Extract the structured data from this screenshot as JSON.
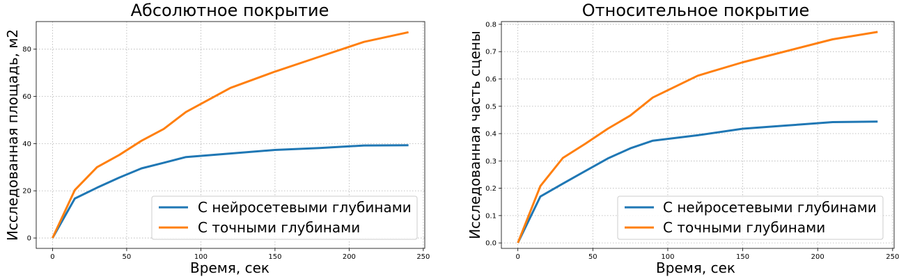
{
  "chart_data": [
    {
      "type": "line",
      "title": "Абсолютное покрытие",
      "xlabel": "Время, сек",
      "ylabel": "Исследованная площадь, м2",
      "xlim": [
        -11,
        251
      ],
      "ylim": [
        -4.4,
        91.7
      ],
      "xticks": [
        0,
        50,
        100,
        150,
        200,
        250
      ],
      "yticks": [
        0,
        20,
        40,
        60,
        80
      ],
      "grid": true,
      "legend_position": "bottom-right",
      "series": [
        {
          "name": "С нейросетевыми глубинами",
          "color": "#1f77b4",
          "x": [
            0,
            15,
            30,
            45,
            60,
            75,
            90,
            120,
            150,
            180,
            210,
            240
          ],
          "y": [
            0,
            16.7,
            21.3,
            25.6,
            29.5,
            31.9,
            34.3,
            35.8,
            37.3,
            38.1,
            39.2,
            39.3
          ]
        },
        {
          "name": "С точными глубинами",
          "color": "#ff7f0e",
          "x": [
            0,
            15,
            30,
            45,
            60,
            75,
            90,
            120,
            150,
            180,
            210,
            240
          ],
          "y": [
            0,
            20.3,
            30.0,
            35.2,
            41.2,
            46.2,
            53.4,
            63.6,
            70.5,
            76.8,
            83.1,
            87.2
          ]
        }
      ]
    },
    {
      "type": "line",
      "title": "Относительное покрытие",
      "xlabel": "Время, сек",
      "ylabel": "Исследованная часть сцены",
      "xlim": [
        -11,
        251
      ],
      "ylim": [
        -0.02,
        0.81
      ],
      "xticks": [
        0,
        50,
        100,
        150,
        200,
        250
      ],
      "yticks": [
        0.0,
        0.1,
        0.2,
        0.3,
        0.4,
        0.5,
        0.6,
        0.7,
        0.8
      ],
      "grid": true,
      "legend_position": "bottom-right",
      "series": [
        {
          "name": "С нейросетевыми глубинами",
          "color": "#1f77b4",
          "x": [
            0,
            15,
            30,
            45,
            60,
            75,
            90,
            120,
            150,
            180,
            210,
            240
          ],
          "y": [
            0,
            0.17,
            0.217,
            0.263,
            0.309,
            0.346,
            0.374,
            0.394,
            0.418,
            0.43,
            0.442,
            0.444
          ]
        },
        {
          "name": "С точными глубинами",
          "color": "#ff7f0e",
          "x": [
            0,
            15,
            30,
            45,
            60,
            75,
            90,
            120,
            150,
            180,
            210,
            240
          ],
          "y": [
            0,
            0.208,
            0.311,
            0.363,
            0.418,
            0.466,
            0.532,
            0.612,
            0.661,
            0.703,
            0.745,
            0.772
          ]
        }
      ]
    }
  ]
}
